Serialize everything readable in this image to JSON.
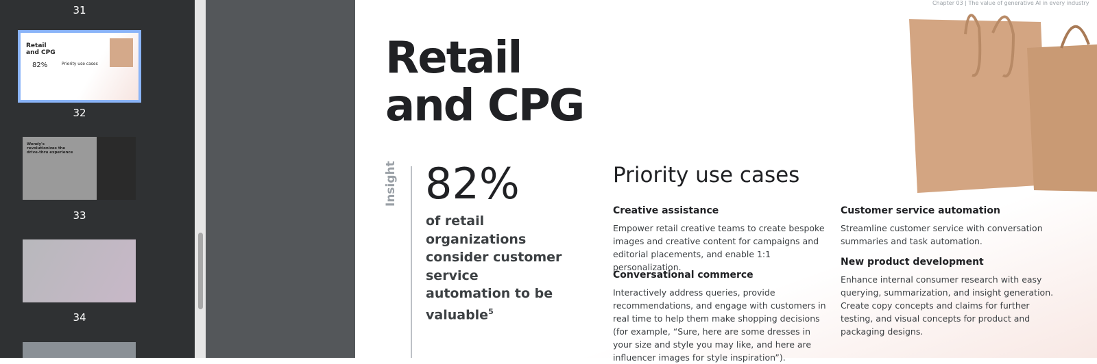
{
  "sidebar": {
    "page_numbers": [
      "31",
      "32",
      "33",
      "34"
    ],
    "thumbnail_32": {
      "title": "Retail and CPG",
      "stat": "82%",
      "heading": "Priority use cases"
    },
    "thumbnail_33": {
      "title": "Wendy's revolutionizes the drive-thru experience"
    }
  },
  "page": {
    "header": "Chapter 03 | The value of generative AI in every industry",
    "title_lines": [
      "Retail",
      "and CPG"
    ],
    "insight_label": "Insight",
    "stat": "82%",
    "stat_text": "of retail organizations consider customer service automation to be valuable",
    "footnote": "5",
    "section_title": "Priority use cases",
    "use_cases": [
      {
        "title": "Creative assistance",
        "text": "Empower retail creative teams to create bespoke images and creative content for campaigns and editorial placements, and enable 1:1 personalization."
      },
      {
        "title": "Conversational commerce",
        "text": "Interactively address queries, provide recommendations, and engage with customers in real time to help them make shopping decisions (for example, “Sure, here are some dresses in your size and style you may like, and here are influencer images for style inspiration”)."
      },
      {
        "title": "Customer service automation",
        "text": "Streamline customer service with conversation summaries and task automation."
      },
      {
        "title": "New product development",
        "text": "Enhance internal consumer research with easy querying, summarization, and insight generation. Create copy concepts and claims for further testing, and visual concepts for product and packaging designs."
      }
    ]
  }
}
